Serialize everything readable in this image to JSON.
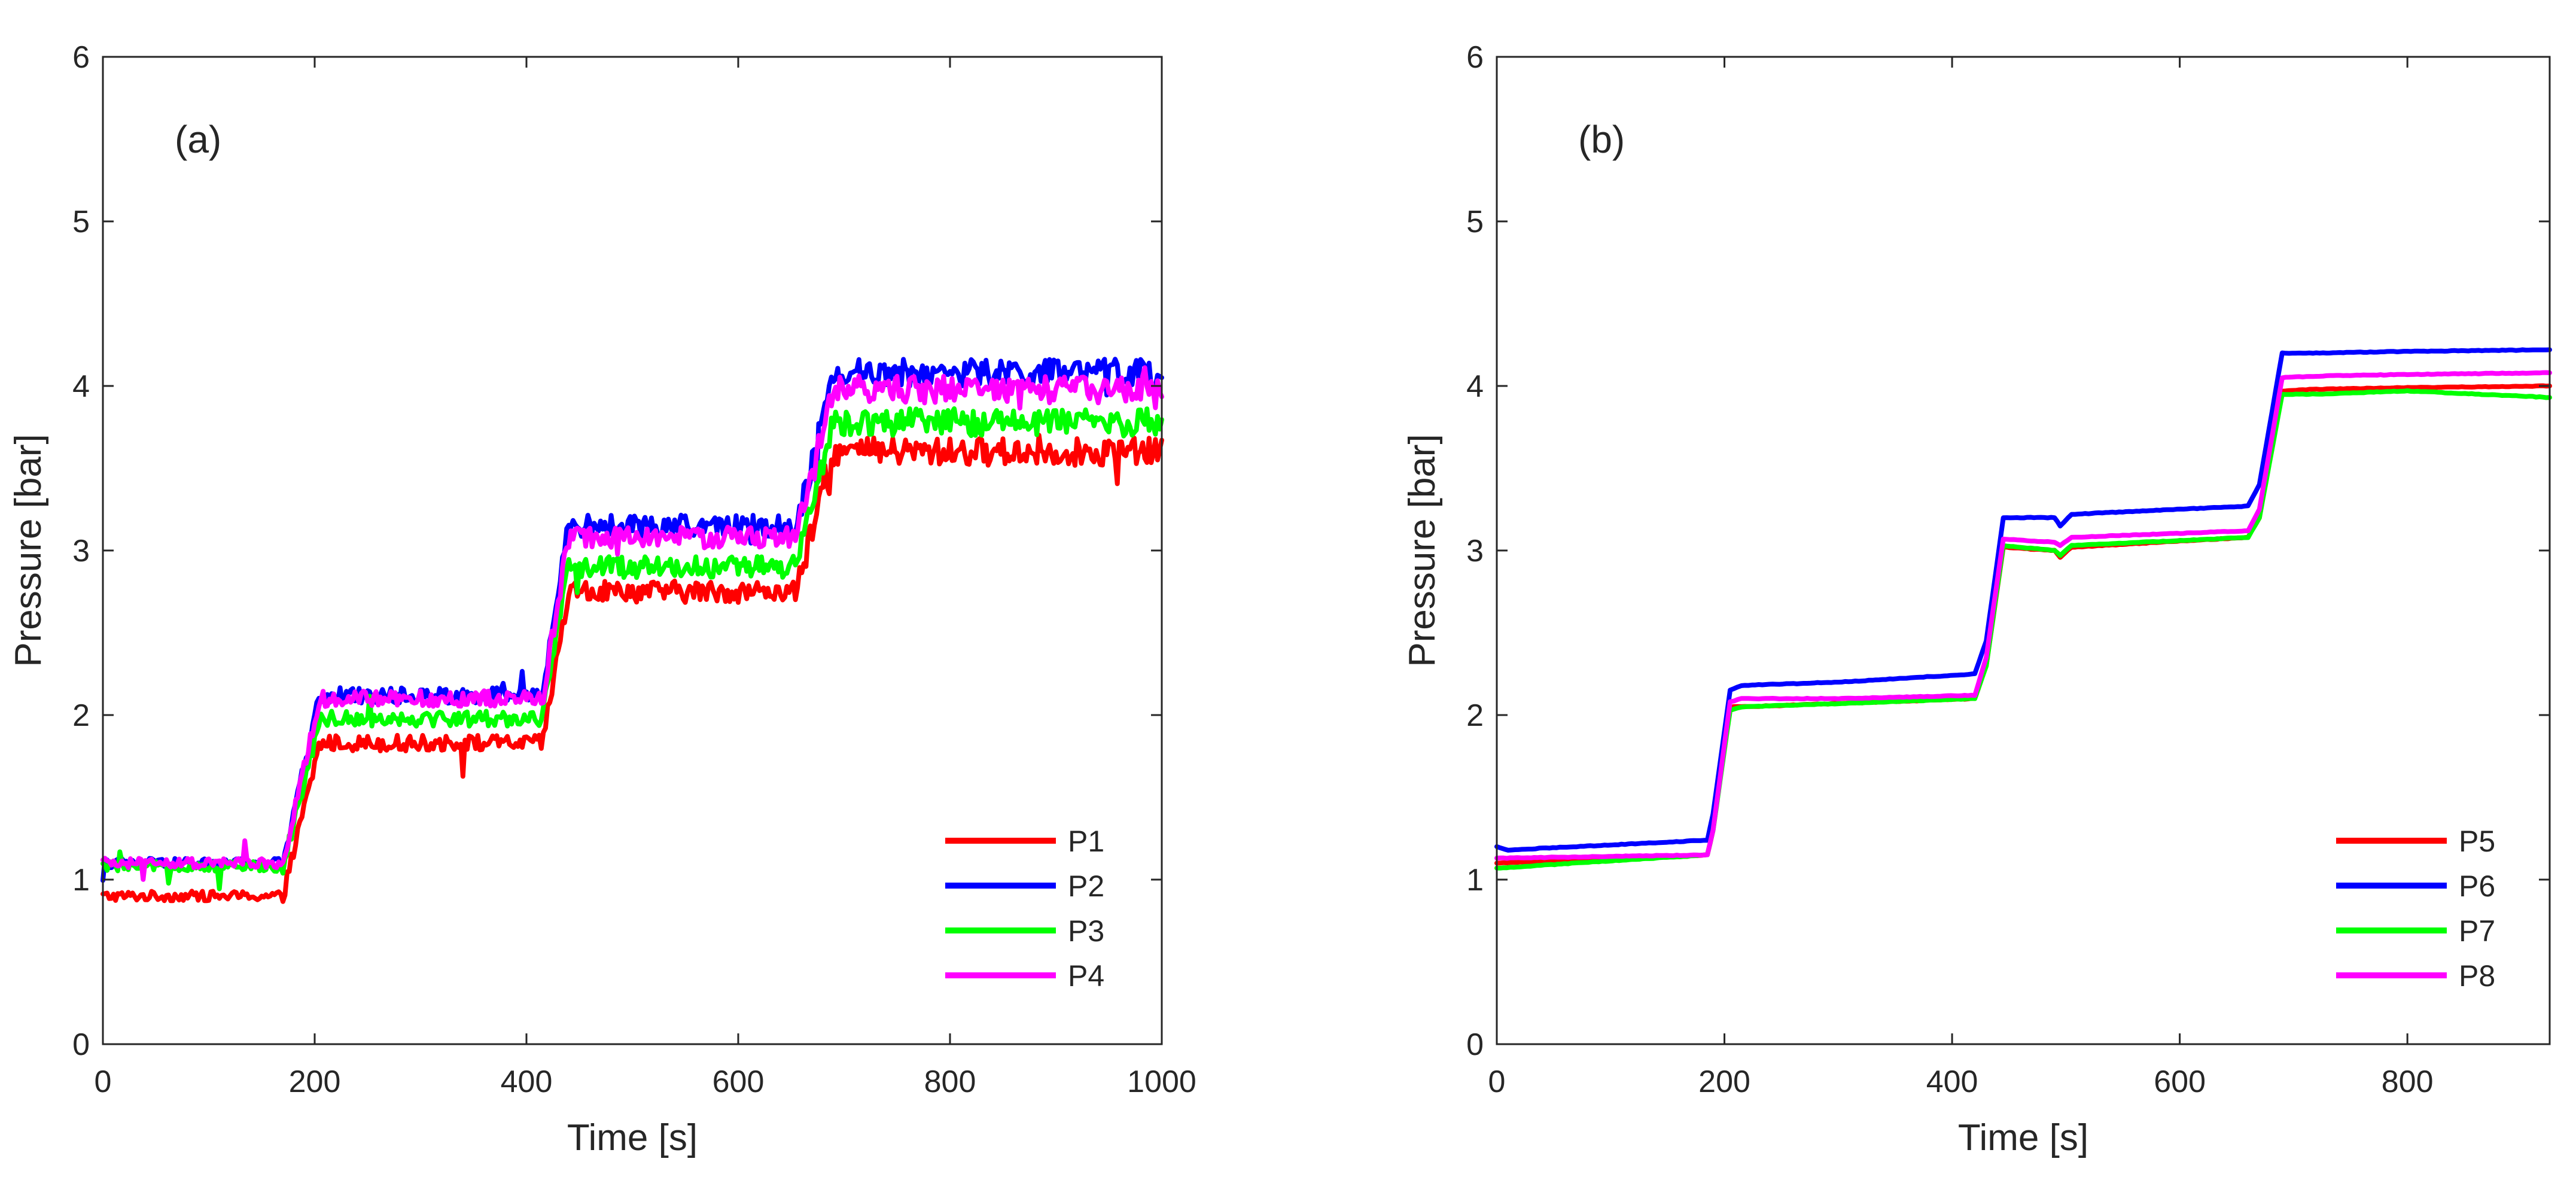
{
  "chart_data": [
    {
      "type": "line",
      "panel_label": "(a)",
      "xlabel": "Time [s]",
      "ylabel": "Pressure [bar]",
      "xlim": [
        0,
        1000
      ],
      "ylim": [
        0,
        6
      ],
      "xticks": [
        0,
        200,
        400,
        600,
        800,
        1000
      ],
      "yticks": [
        0,
        1,
        2,
        3,
        4,
        5,
        6
      ],
      "noise": 0.06,
      "legend_position": "bottom-right",
      "series": [
        {
          "name": "P1",
          "color": "#ff0000",
          "levels": [
            0.9,
            1.83,
            2.75,
            3.6
          ],
          "steps": [
            {
              "t0": 170,
              "t1": 205
            },
            {
              "t0": 415,
              "t1": 440
            },
            {
              "t0": 655,
              "t1": 690
            }
          ]
        },
        {
          "name": "P2",
          "color": "#0000ff",
          "levels": [
            1.1,
            2.12,
            3.15,
            4.08
          ],
          "steps": [
            {
              "t0": 170,
              "t1": 205
            },
            {
              "t0": 415,
              "t1": 440
            },
            {
              "t0": 655,
              "t1": 690
            }
          ]
        },
        {
          "name": "P3",
          "color": "#00ff00",
          "levels": [
            1.08,
            1.98,
            2.9,
            3.78
          ],
          "steps": [
            {
              "t0": 170,
              "t1": 205
            },
            {
              "t0": 415,
              "t1": 440
            },
            {
              "t0": 655,
              "t1": 690
            }
          ]
        },
        {
          "name": "P4",
          "color": "#ff00ff",
          "levels": [
            1.1,
            2.1,
            3.08,
            3.98
          ],
          "steps": [
            {
              "t0": 170,
              "t1": 205
            },
            {
              "t0": 415,
              "t1": 440
            },
            {
              "t0": 655,
              "t1": 690
            }
          ]
        }
      ]
    },
    {
      "type": "line",
      "panel_label": "(b)",
      "xlabel": "Time [s]",
      "ylabel": "Pressure [bar]",
      "xlim": [
        0,
        925
      ],
      "ylim": [
        0,
        6
      ],
      "xticks": [
        0,
        200,
        400,
        600,
        800
      ],
      "yticks": [
        0,
        1,
        2,
        3,
        4,
        5,
        6
      ],
      "noise": 0.004,
      "legend_position": "bottom-right",
      "series": [
        {
          "name": "P5",
          "color": "#ff0000",
          "x": [
            0,
            185,
            190,
            205,
            215,
            300,
            420,
            430,
            445,
            490,
            495,
            505,
            660,
            670,
            690,
            720,
            800,
            925
          ],
          "y": [
            1.1,
            1.15,
            1.3,
            2.05,
            2.05,
            2.07,
            2.1,
            2.3,
            3.02,
            3.0,
            2.96,
            3.02,
            3.08,
            3.2,
            3.97,
            3.98,
            3.99,
            4.0
          ]
        },
        {
          "name": "P6",
          "color": "#0000ff",
          "x": [
            0,
            10,
            185,
            190,
            205,
            215,
            300,
            420,
            430,
            445,
            490,
            495,
            505,
            660,
            670,
            690,
            720,
            800,
            925
          ],
          "y": [
            1.2,
            1.18,
            1.24,
            1.4,
            2.15,
            2.18,
            2.2,
            2.25,
            2.45,
            3.2,
            3.2,
            3.15,
            3.22,
            3.27,
            3.4,
            4.2,
            4.2,
            4.21,
            4.22
          ]
        },
        {
          "name": "P7",
          "color": "#00ff00",
          "x": [
            0,
            185,
            190,
            205,
            215,
            300,
            420,
            430,
            445,
            490,
            495,
            505,
            660,
            670,
            690,
            720,
            800,
            925
          ],
          "y": [
            1.07,
            1.15,
            1.3,
            2.03,
            2.05,
            2.07,
            2.1,
            2.3,
            3.03,
            3.0,
            2.97,
            3.03,
            3.08,
            3.2,
            3.95,
            3.95,
            3.97,
            3.93
          ]
        },
        {
          "name": "P8",
          "color": "#ff00ff",
          "x": [
            0,
            185,
            190,
            205,
            215,
            300,
            420,
            430,
            445,
            490,
            495,
            505,
            660,
            670,
            690,
            720,
            800,
            925
          ],
          "y": [
            1.13,
            1.15,
            1.3,
            2.08,
            2.1,
            2.1,
            2.12,
            2.35,
            3.07,
            3.05,
            3.03,
            3.08,
            3.12,
            3.25,
            4.05,
            4.06,
            4.07,
            4.08
          ]
        }
      ]
    }
  ]
}
